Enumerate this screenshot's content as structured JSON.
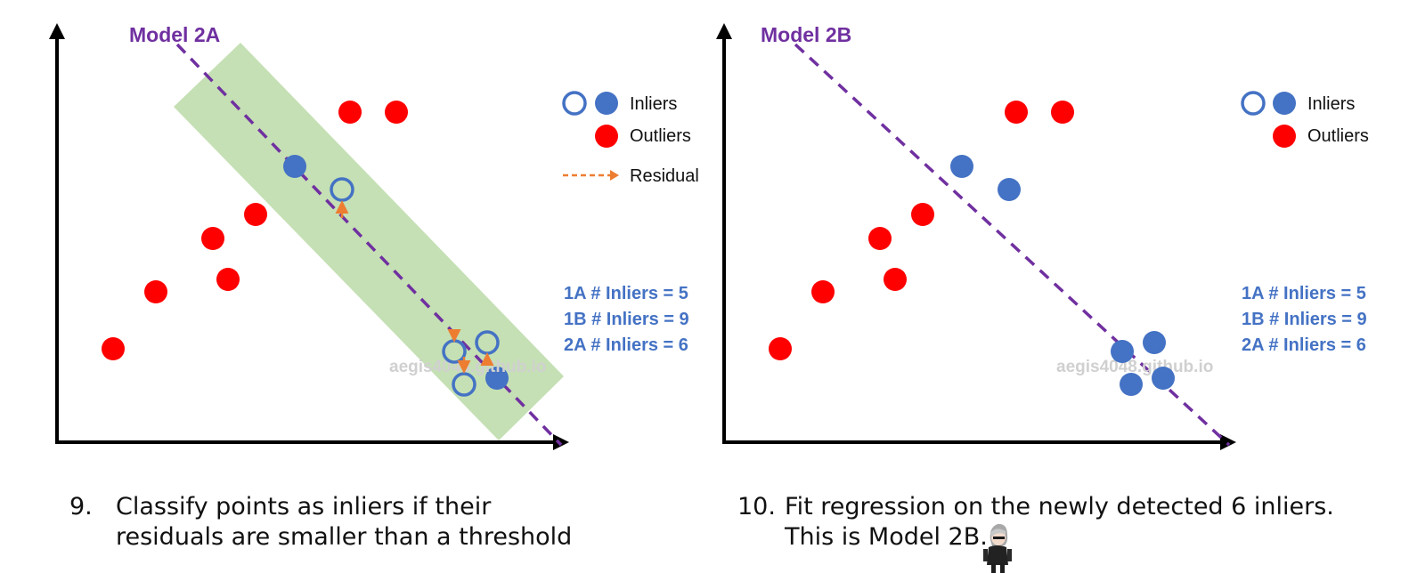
{
  "panels": [
    {
      "id": "left",
      "model_label": "Model 2A",
      "legend": {
        "inliers": "Inliers",
        "outliers": "Outliers",
        "residual": "Residual"
      },
      "stats": [
        "1A # Inliers = 5",
        "1B # Inliers = 9",
        "2A # Inliers = 6"
      ],
      "watermark": "aegis4048.github.io"
    },
    {
      "id": "right",
      "model_label": "Model 2B",
      "legend": {
        "inliers": "Inliers",
        "outliers": "Outliers"
      },
      "stats": [
        "1A # Inliers = 5",
        "1B # Inliers = 9",
        "2A # Inliers = 6"
      ],
      "watermark": "aegis4048.github.io"
    }
  ],
  "steps": [
    {
      "number": "9.",
      "lines": [
        "Classify points as inliers if their",
        "residuals are smaller than a threshold"
      ]
    },
    {
      "number": "10.",
      "lines": [
        "Fit regression on the newly detected 6 inliers.",
        "This is Model 2B."
      ]
    }
  ],
  "colors": {
    "inlier": "#4472C4",
    "outlier": "#FF0000",
    "model_line": "#7030A0",
    "threshold_band": "#C5E0B4",
    "residual": "#ED7D31",
    "stats_text": "#4472C4",
    "watermark": "#D0D0D0"
  }
}
